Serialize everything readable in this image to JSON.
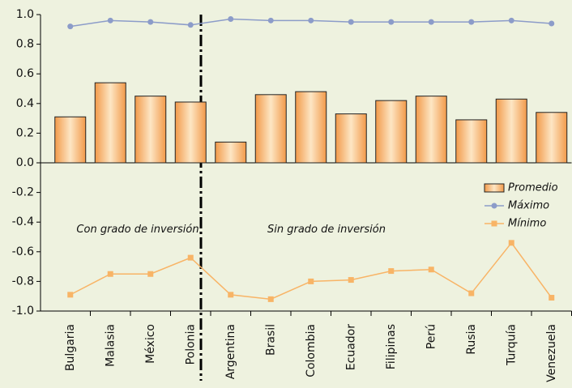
{
  "chart_data": {
    "type": "bar_line",
    "categories": [
      "Bulgaria",
      "Malasia",
      "México",
      "Polonia",
      "Argentina",
      "Brasil",
      "Colombia",
      "Ecuador",
      "Filipinas",
      "Perú",
      "Rusia",
      "Turquía",
      "Venezuela"
    ],
    "series": [
      {
        "name": "Promedio",
        "type": "bar",
        "color": "#f5a65b",
        "values": [
          0.31,
          0.54,
          0.45,
          0.41,
          0.14,
          0.46,
          0.48,
          0.33,
          0.42,
          0.45,
          0.29,
          0.43,
          0.34
        ]
      },
      {
        "name": "Máximo",
        "type": "line",
        "color": "#8c9cc9",
        "values": [
          0.92,
          0.96,
          0.95,
          0.93,
          0.97,
          0.96,
          0.96,
          0.95,
          0.95,
          0.95,
          0.95,
          0.96,
          0.94
        ]
      },
      {
        "name": "Mínimo",
        "type": "line",
        "color": "#f8b466",
        "values": [
          -0.89,
          -0.75,
          -0.75,
          -0.64,
          -0.89,
          -0.92,
          -0.8,
          -0.79,
          -0.73,
          -0.72,
          -0.88,
          -0.54,
          -0.91
        ]
      }
    ],
    "ylim": [
      -1.0,
      1.0
    ],
    "yticks": [
      {
        "value": -1.0,
        "label": "-1.0"
      },
      -0.8,
      -0.6,
      -0.4,
      -0.2,
      {
        "value": 0,
        "label": "0.0"
      },
      0.2,
      0.4,
      0.6,
      0.8,
      {
        "value": 1.0,
        "label": "1.0"
      }
    ],
    "annotations": [
      "Con grado de inversión",
      "Sin grado de inversión"
    ]
  }
}
